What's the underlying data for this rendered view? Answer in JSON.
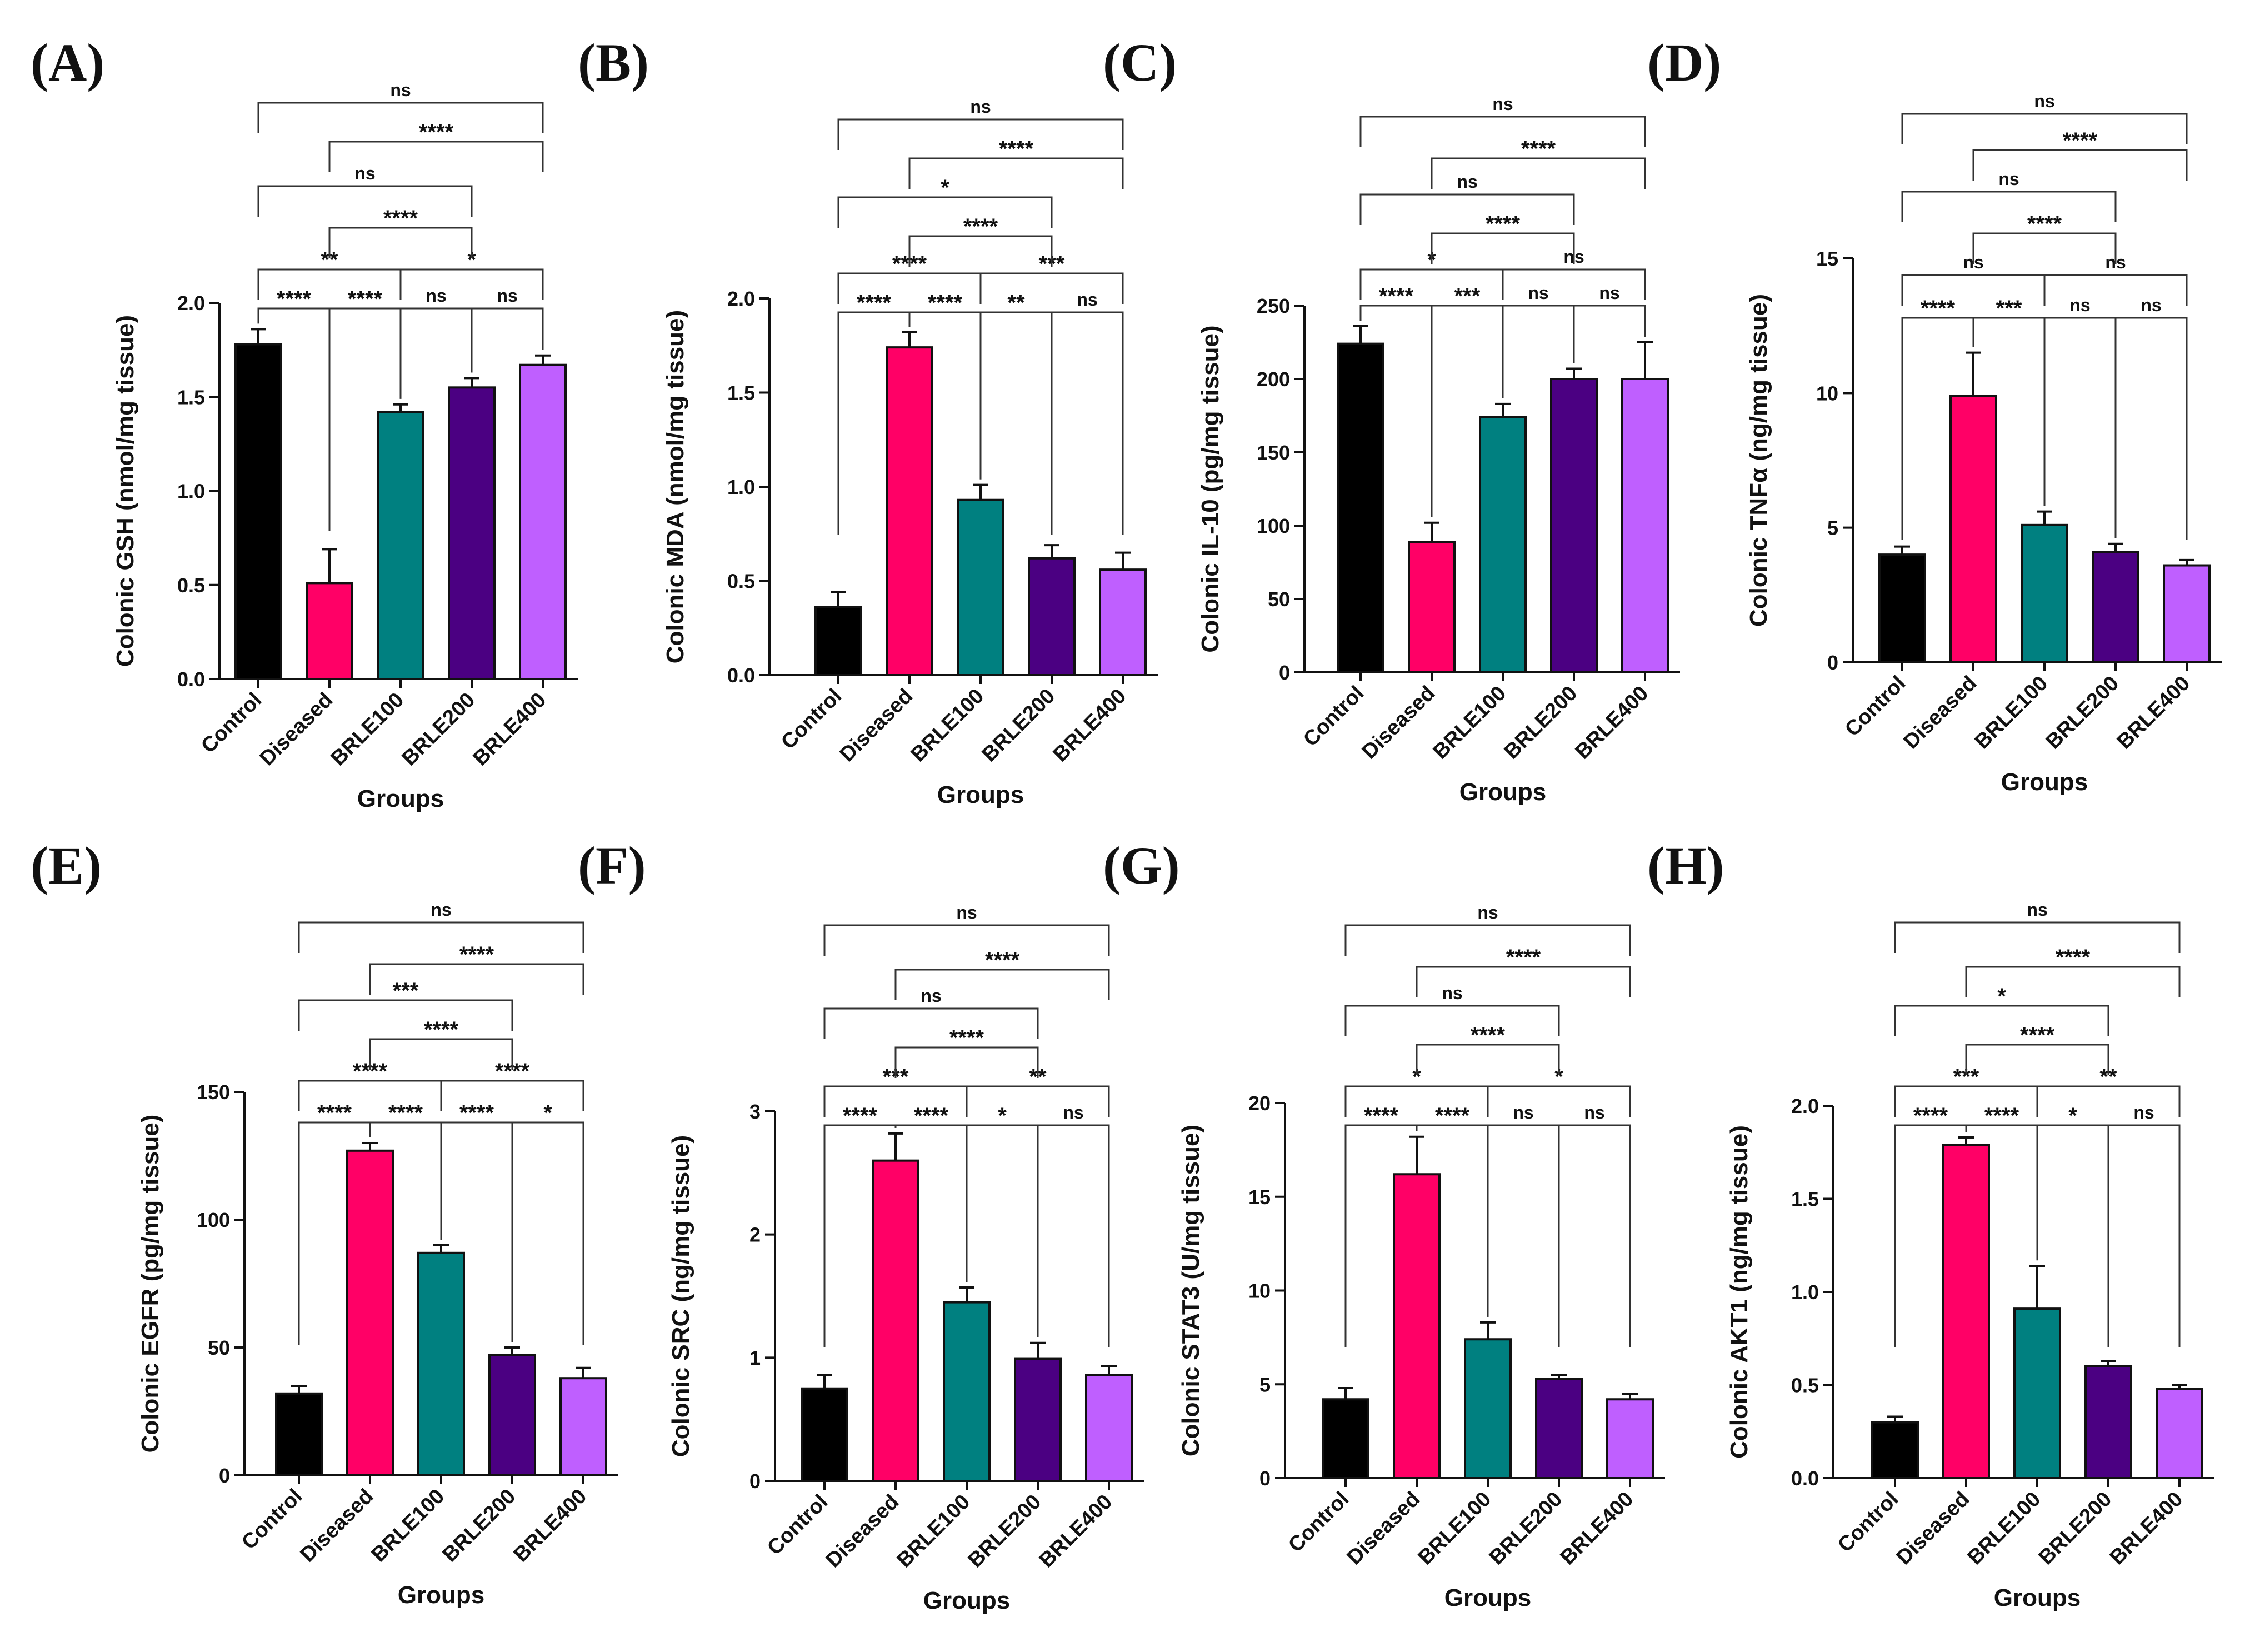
{
  "colors": {
    "Control": "#000000",
    "Diseased": "#ff0066",
    "BRLE100": "#008080",
    "BRLE200": "#4b0082",
    "BRLE400": "#bf5fff"
  },
  "chart_data": [
    {
      "panel": "(A)",
      "type": "bar",
      "ylabel": "Colonic GSH (nmol/mg tissue)",
      "xlabel": "Groups",
      "categories": [
        "Control",
        "Diseased",
        "BRLE100",
        "BRLE200",
        "BRLE400"
      ],
      "values": [
        1.78,
        0.51,
        1.42,
        1.55,
        1.67
      ],
      "errors": [
        0.08,
        0.18,
        0.04,
        0.05,
        0.05
      ],
      "ylim": [
        0,
        2.0
      ],
      "yticks": [
        "0.0",
        "0.5",
        "1.0",
        "1.5",
        "2.0"
      ],
      "comparisons": [
        {
          "from": 0,
          "to": 1,
          "label": "****"
        },
        {
          "from": 1,
          "to": 2,
          "label": "****"
        },
        {
          "from": 2,
          "to": 3,
          "label": "ns"
        },
        {
          "from": 3,
          "to": 4,
          "label": "ns"
        },
        {
          "from": 0,
          "to": 2,
          "label": "**"
        },
        {
          "from": 2,
          "to": 4,
          "label": "*"
        },
        {
          "from": 1,
          "to": 3,
          "label": "****"
        },
        {
          "from": 0,
          "to": 3,
          "label": "ns"
        },
        {
          "from": 1,
          "to": 4,
          "label": "****"
        },
        {
          "from": 0,
          "to": 4,
          "label": "ns"
        }
      ]
    },
    {
      "panel": "(B)",
      "type": "bar",
      "ylabel": "Colonic MDA (nmol/mg tissue)",
      "xlabel": "Groups",
      "categories": [
        "Control",
        "Diseased",
        "BRLE100",
        "BRLE200",
        "BRLE400"
      ],
      "values": [
        0.36,
        1.74,
        0.93,
        0.62,
        0.56
      ],
      "errors": [
        0.08,
        0.08,
        0.08,
        0.07,
        0.09
      ],
      "ylim": [
        0,
        2.0
      ],
      "yticks": [
        "0.0",
        "0.5",
        "1.0",
        "1.5",
        "2.0"
      ],
      "comparisons": [
        {
          "from": 0,
          "to": 1,
          "label": "****"
        },
        {
          "from": 1,
          "to": 2,
          "label": "****"
        },
        {
          "from": 2,
          "to": 3,
          "label": "**"
        },
        {
          "from": 3,
          "to": 4,
          "label": "ns"
        },
        {
          "from": 0,
          "to": 2,
          "label": "****"
        },
        {
          "from": 2,
          "to": 4,
          "label": "***"
        },
        {
          "from": 1,
          "to": 3,
          "label": "****"
        },
        {
          "from": 0,
          "to": 3,
          "label": "*"
        },
        {
          "from": 1,
          "to": 4,
          "label": "****"
        },
        {
          "from": 0,
          "to": 4,
          "label": "ns"
        }
      ]
    },
    {
      "panel": "(C)",
      "type": "bar",
      "ylabel": "Colonic IL-10 (pg/mg tissue)",
      "xlabel": "Groups",
      "categories": [
        "Control",
        "Diseased",
        "BRLE100",
        "BRLE200",
        "BRLE400"
      ],
      "values": [
        224,
        89,
        174,
        200,
        200
      ],
      "errors": [
        12,
        13,
        9,
        7,
        25
      ],
      "ylim": [
        0,
        250
      ],
      "yticks": [
        "0",
        "50",
        "100",
        "150",
        "200",
        "250"
      ],
      "comparisons": [
        {
          "from": 0,
          "to": 1,
          "label": "****"
        },
        {
          "from": 1,
          "to": 2,
          "label": "***"
        },
        {
          "from": 2,
          "to": 3,
          "label": "ns"
        },
        {
          "from": 3,
          "to": 4,
          "label": "ns"
        },
        {
          "from": 0,
          "to": 2,
          "label": "*"
        },
        {
          "from": 2,
          "to": 4,
          "label": "ns"
        },
        {
          "from": 1,
          "to": 3,
          "label": "****"
        },
        {
          "from": 0,
          "to": 3,
          "label": "ns"
        },
        {
          "from": 1,
          "to": 4,
          "label": "****"
        },
        {
          "from": 0,
          "to": 4,
          "label": "ns"
        }
      ]
    },
    {
      "panel": "(D)",
      "type": "bar",
      "ylabel": "Colonic TNFα (ng/mg tissue)",
      "xlabel": "Groups",
      "categories": [
        "Control",
        "Diseased",
        "BRLE100",
        "BRLE200",
        "BRLE400"
      ],
      "values": [
        4.0,
        9.9,
        5.1,
        4.1,
        3.6
      ],
      "errors": [
        0.3,
        1.6,
        0.5,
        0.3,
        0.2
      ],
      "ylim": [
        0,
        15
      ],
      "yticks": [
        "0",
        "5",
        "10",
        "15"
      ],
      "comparisons": [
        {
          "from": 0,
          "to": 1,
          "label": "****"
        },
        {
          "from": 1,
          "to": 2,
          "label": "***"
        },
        {
          "from": 2,
          "to": 3,
          "label": "ns"
        },
        {
          "from": 3,
          "to": 4,
          "label": "ns"
        },
        {
          "from": 0,
          "to": 2,
          "label": "ns"
        },
        {
          "from": 2,
          "to": 4,
          "label": "ns"
        },
        {
          "from": 1,
          "to": 3,
          "label": "****"
        },
        {
          "from": 0,
          "to": 3,
          "label": "ns"
        },
        {
          "from": 1,
          "to": 4,
          "label": "****"
        },
        {
          "from": 0,
          "to": 4,
          "label": "ns"
        }
      ]
    },
    {
      "panel": "(E)",
      "type": "bar",
      "ylabel": "Colonic EGFR (pg/mg tissue)",
      "xlabel": "Groups",
      "categories": [
        "Control",
        "Diseased",
        "BRLE100",
        "BRLE200",
        "BRLE400"
      ],
      "values": [
        32,
        127,
        87,
        47,
        38
      ],
      "errors": [
        3,
        3,
        3,
        3,
        4
      ],
      "ylim": [
        0,
        150
      ],
      "yticks": [
        "0",
        "50",
        "100",
        "150"
      ],
      "comparisons": [
        {
          "from": 0,
          "to": 1,
          "label": "****"
        },
        {
          "from": 1,
          "to": 2,
          "label": "****"
        },
        {
          "from": 2,
          "to": 3,
          "label": "****"
        },
        {
          "from": 3,
          "to": 4,
          "label": "*"
        },
        {
          "from": 0,
          "to": 2,
          "label": "****"
        },
        {
          "from": 2,
          "to": 4,
          "label": "****"
        },
        {
          "from": 1,
          "to": 3,
          "label": "****"
        },
        {
          "from": 0,
          "to": 3,
          "label": "***"
        },
        {
          "from": 1,
          "to": 4,
          "label": "****"
        },
        {
          "from": 0,
          "to": 4,
          "label": "ns"
        }
      ]
    },
    {
      "panel": "(F)",
      "type": "bar",
      "ylabel": "Colonic SRC (ng/mg tissue)",
      "xlabel": "Groups",
      "categories": [
        "Control",
        "Diseased",
        "BRLE100",
        "BRLE200",
        "BRLE400"
      ],
      "values": [
        0.75,
        2.6,
        1.45,
        0.99,
        0.86
      ],
      "errors": [
        0.11,
        0.22,
        0.12,
        0.13,
        0.07
      ],
      "ylim": [
        0,
        3
      ],
      "yticks": [
        "0",
        "1",
        "2",
        "3"
      ],
      "comparisons": [
        {
          "from": 0,
          "to": 1,
          "label": "****"
        },
        {
          "from": 1,
          "to": 2,
          "label": "****"
        },
        {
          "from": 2,
          "to": 3,
          "label": "*"
        },
        {
          "from": 3,
          "to": 4,
          "label": "ns"
        },
        {
          "from": 0,
          "to": 2,
          "label": "***"
        },
        {
          "from": 2,
          "to": 4,
          "label": "**"
        },
        {
          "from": 1,
          "to": 3,
          "label": "****"
        },
        {
          "from": 0,
          "to": 3,
          "label": "ns"
        },
        {
          "from": 1,
          "to": 4,
          "label": "****"
        },
        {
          "from": 0,
          "to": 4,
          "label": "ns"
        }
      ]
    },
    {
      "panel": "(G)",
      "type": "bar",
      "ylabel": "Colonic STAT3 (U/mg tissue)",
      "xlabel": "Groups",
      "categories": [
        "Control",
        "Diseased",
        "BRLE100",
        "BRLE200",
        "BRLE400"
      ],
      "values": [
        4.2,
        16.2,
        7.4,
        5.3,
        4.2
      ],
      "errors": [
        0.6,
        2.0,
        0.9,
        0.2,
        0.3
      ],
      "ylim": [
        0,
        20
      ],
      "yticks": [
        "0",
        "5",
        "10",
        "15",
        "20"
      ],
      "comparisons": [
        {
          "from": 0,
          "to": 1,
          "label": "****"
        },
        {
          "from": 1,
          "to": 2,
          "label": "****"
        },
        {
          "from": 2,
          "to": 3,
          "label": "ns"
        },
        {
          "from": 3,
          "to": 4,
          "label": "ns"
        },
        {
          "from": 0,
          "to": 2,
          "label": "*"
        },
        {
          "from": 2,
          "to": 4,
          "label": "*"
        },
        {
          "from": 1,
          "to": 3,
          "label": "****"
        },
        {
          "from": 0,
          "to": 3,
          "label": "ns"
        },
        {
          "from": 1,
          "to": 4,
          "label": "****"
        },
        {
          "from": 0,
          "to": 4,
          "label": "ns"
        }
      ]
    },
    {
      "panel": "(H)",
      "type": "bar",
      "ylabel": "Colonic AKT1 (ng/mg tissue)",
      "xlabel": "Groups",
      "categories": [
        "Control",
        "Diseased",
        "BRLE100",
        "BRLE200",
        "BRLE400"
      ],
      "values": [
        0.3,
        1.79,
        0.91,
        0.6,
        0.48
      ],
      "errors": [
        0.03,
        0.04,
        0.23,
        0.03,
        0.02
      ],
      "ylim": [
        0,
        2.0
      ],
      "yticks": [
        "0.0",
        "0.5",
        "1.0",
        "1.5",
        "2.0"
      ],
      "comparisons": [
        {
          "from": 0,
          "to": 1,
          "label": "****"
        },
        {
          "from": 1,
          "to": 2,
          "label": "****"
        },
        {
          "from": 2,
          "to": 3,
          "label": "*"
        },
        {
          "from": 3,
          "to": 4,
          "label": "ns"
        },
        {
          "from": 0,
          "to": 2,
          "label": "***"
        },
        {
          "from": 2,
          "to": 4,
          "label": "**"
        },
        {
          "from": 1,
          "to": 3,
          "label": "****"
        },
        {
          "from": 0,
          "to": 3,
          "label": "*"
        },
        {
          "from": 1,
          "to": 4,
          "label": "****"
        },
        {
          "from": 0,
          "to": 4,
          "label": "ns"
        }
      ]
    }
  ]
}
